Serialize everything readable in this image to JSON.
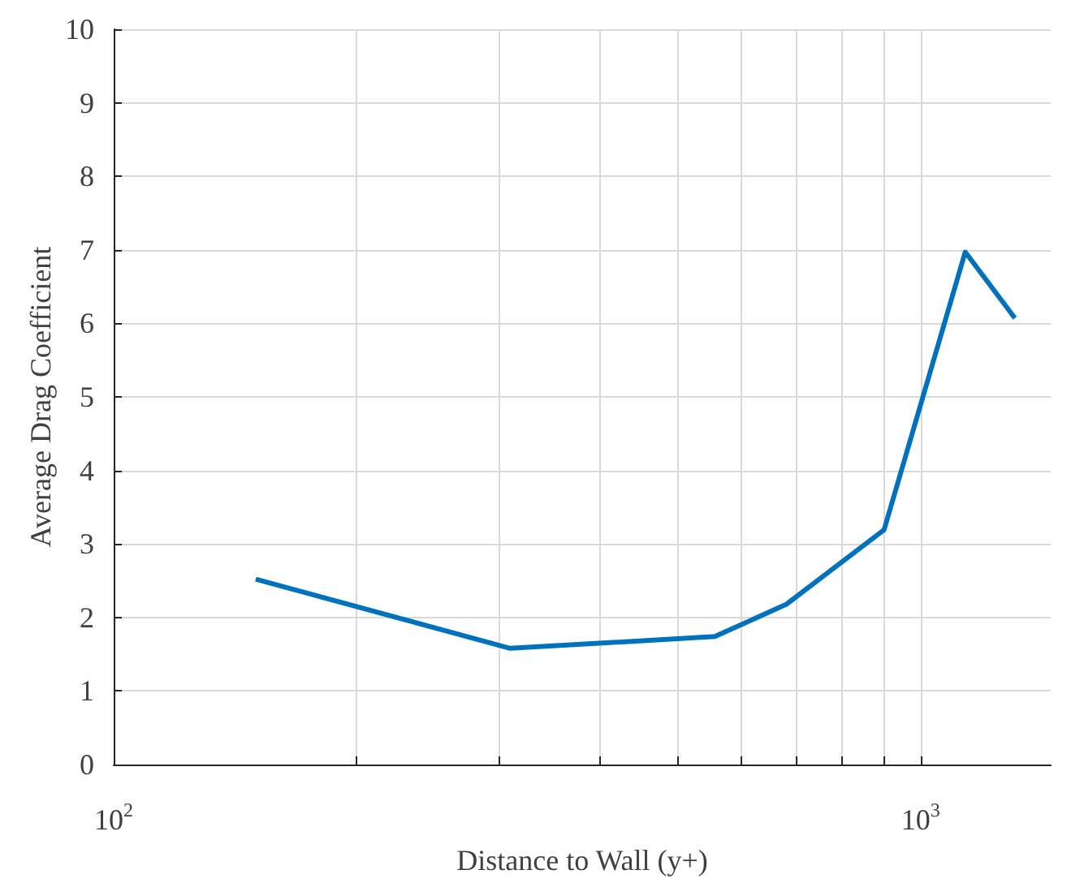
{
  "chart_data": {
    "type": "line",
    "xlabel": "Distance to Wall (y+)",
    "ylabel": "Average Drag Coefficient",
    "x": [
      150,
      310,
      556,
      682,
      901,
      1136,
      1309
    ],
    "series": [
      {
        "color": "#0072bd",
        "values": [
          2.52,
          1.58,
          1.74,
          2.18,
          3.19,
          6.97,
          6.07
        ]
      }
    ],
    "log": "x",
    "xlim": [
      100,
      1450
    ],
    "xticks": [
      {
        "value": 100,
        "label": "10$^{2}$"
      },
      {
        "value": 200,
        "label": null
      },
      {
        "value": 300,
        "label": null
      },
      {
        "value": 400,
        "label": null
      },
      {
        "value": 500,
        "label": null
      },
      {
        "value": 600,
        "label": null
      },
      {
        "value": 700,
        "label": null
      },
      {
        "value": 800,
        "label": null
      },
      {
        "value": 900,
        "label": null
      },
      {
        "value": 1000,
        "label": "10$^{3}$"
      }
    ],
    "ylim": [
      0,
      10
    ],
    "yticks": [
      0,
      1,
      2,
      3,
      4,
      5,
      6,
      7,
      8,
      9,
      10
    ],
    "grid": true,
    "marker": "none",
    "line_style": "solid"
  }
}
